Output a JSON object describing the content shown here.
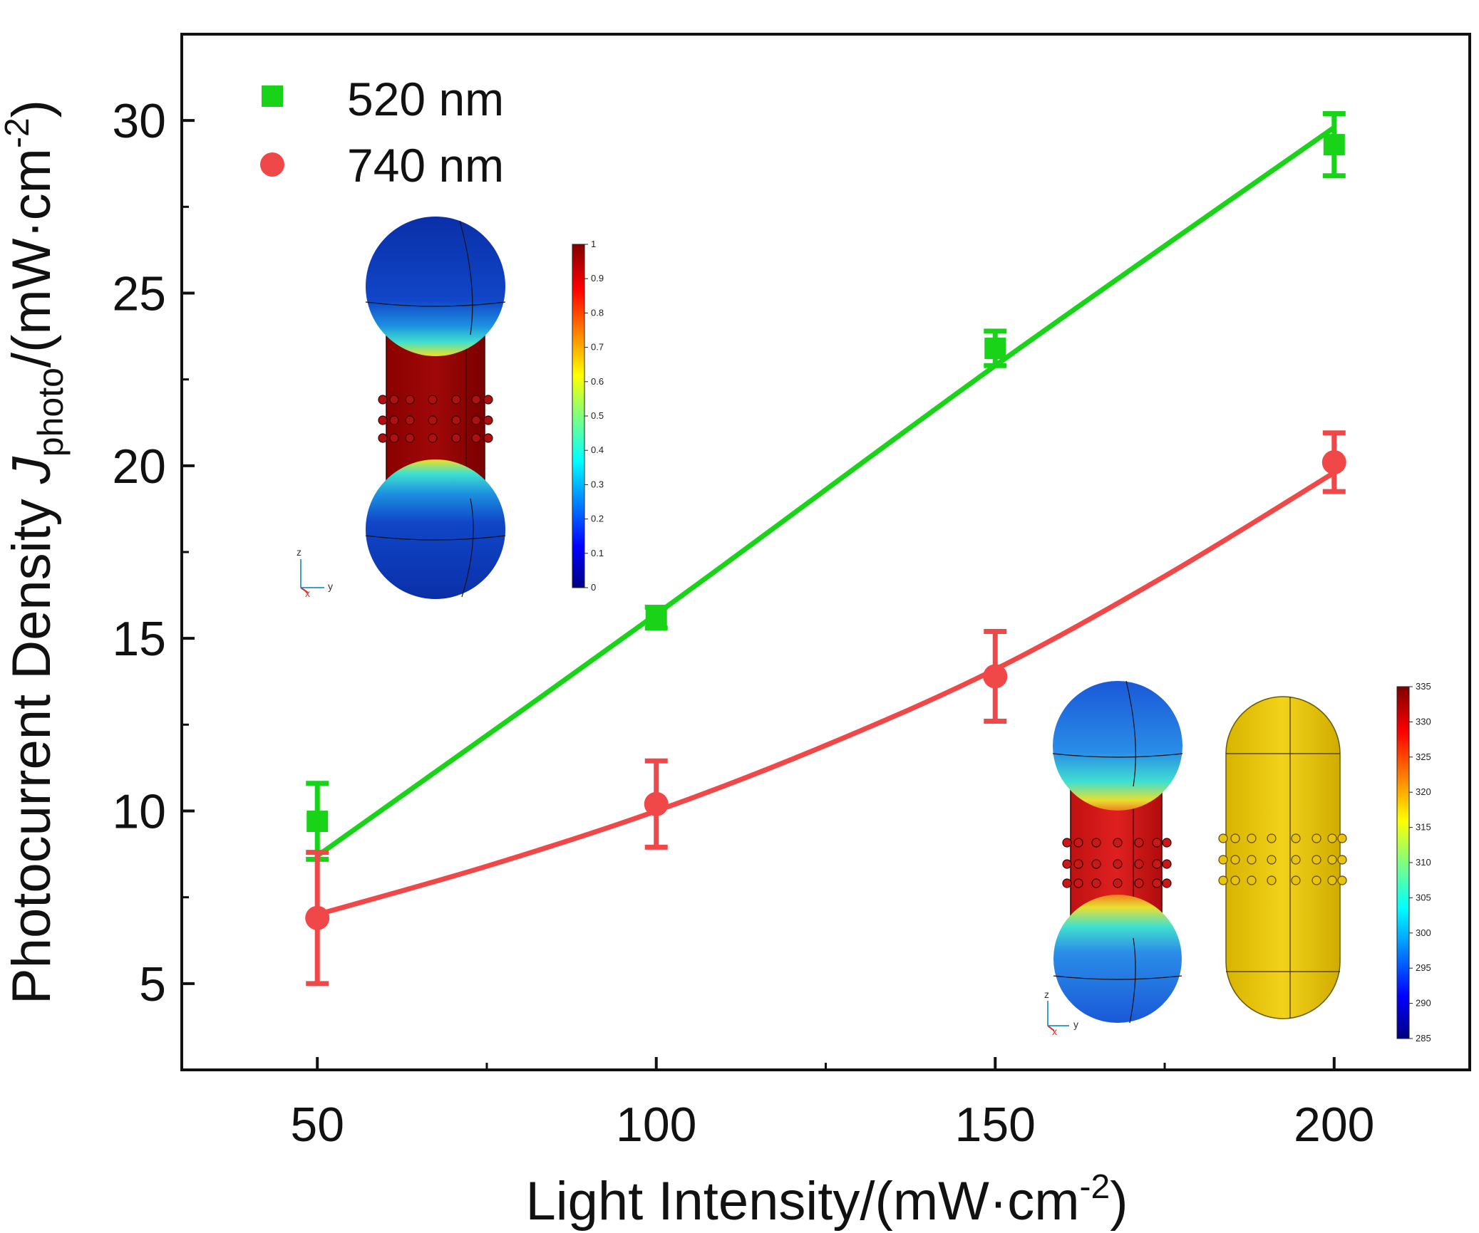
{
  "chart_data": {
    "type": "line",
    "xlabel": "Light Intensity/(mW·cm",
    "xlabel_sup": "-2",
    "xlabel_end": ")",
    "ylabel_pre": "Photocurrent Density ",
    "ylabel_italic": "J",
    "ylabel_sub": "photo",
    "ylabel_post": "/(mW·cm",
    "ylabel_sup": "-2",
    "ylabel_end": ")",
    "xlim": [
      30,
      220
    ],
    "ylim": [
      2.5,
      32.5
    ],
    "xticks": [
      50,
      100,
      150,
      200
    ],
    "yticks": [
      5,
      10,
      15,
      20,
      25,
      30
    ],
    "grid": false,
    "legend_position": "top-left",
    "series": [
      {
        "name": "520 nm",
        "color": "#19d319",
        "marker": "square",
        "x": [
          50,
          100,
          150,
          200
        ],
        "y": [
          9.7,
          15.6,
          23.4,
          29.3
        ],
        "err": [
          1.1,
          0.3,
          0.5,
          0.9
        ],
        "fit": [
          [
            50,
            8.7
          ],
          [
            100,
            15.7
          ],
          [
            150,
            22.9
          ],
          [
            200,
            29.8
          ]
        ]
      },
      {
        "name": "740 nm",
        "color": "#f04848",
        "marker": "circle",
        "x": [
          50,
          100,
          150,
          200
        ],
        "y": [
          6.9,
          10.2,
          13.9,
          20.1
        ],
        "err": [
          1.9,
          1.25,
          1.3,
          0.85
        ],
        "fit": [
          [
            50,
            7.0
          ],
          [
            75,
            8.4
          ],
          [
            100,
            10.0
          ],
          [
            125,
            11.9
          ],
          [
            150,
            14.1
          ],
          [
            175,
            16.8
          ],
          [
            200,
            19.8
          ]
        ]
      }
    ],
    "insets": [
      {
        "colorbar_ticks": [
          "1",
          "0.9",
          "0.8",
          "0.7",
          "0.6",
          "0.5",
          "0.4",
          "0.3",
          "0.2",
          "0.1",
          "0"
        ],
        "axis_labels": [
          "z",
          "x",
          "y"
        ]
      },
      {
        "colorbar_ticks": [
          "335",
          "330",
          "325",
          "320",
          "315",
          "310",
          "305",
          "300",
          "295",
          "290",
          "285"
        ],
        "axis_labels": [
          "z",
          "x",
          "y"
        ]
      }
    ]
  }
}
